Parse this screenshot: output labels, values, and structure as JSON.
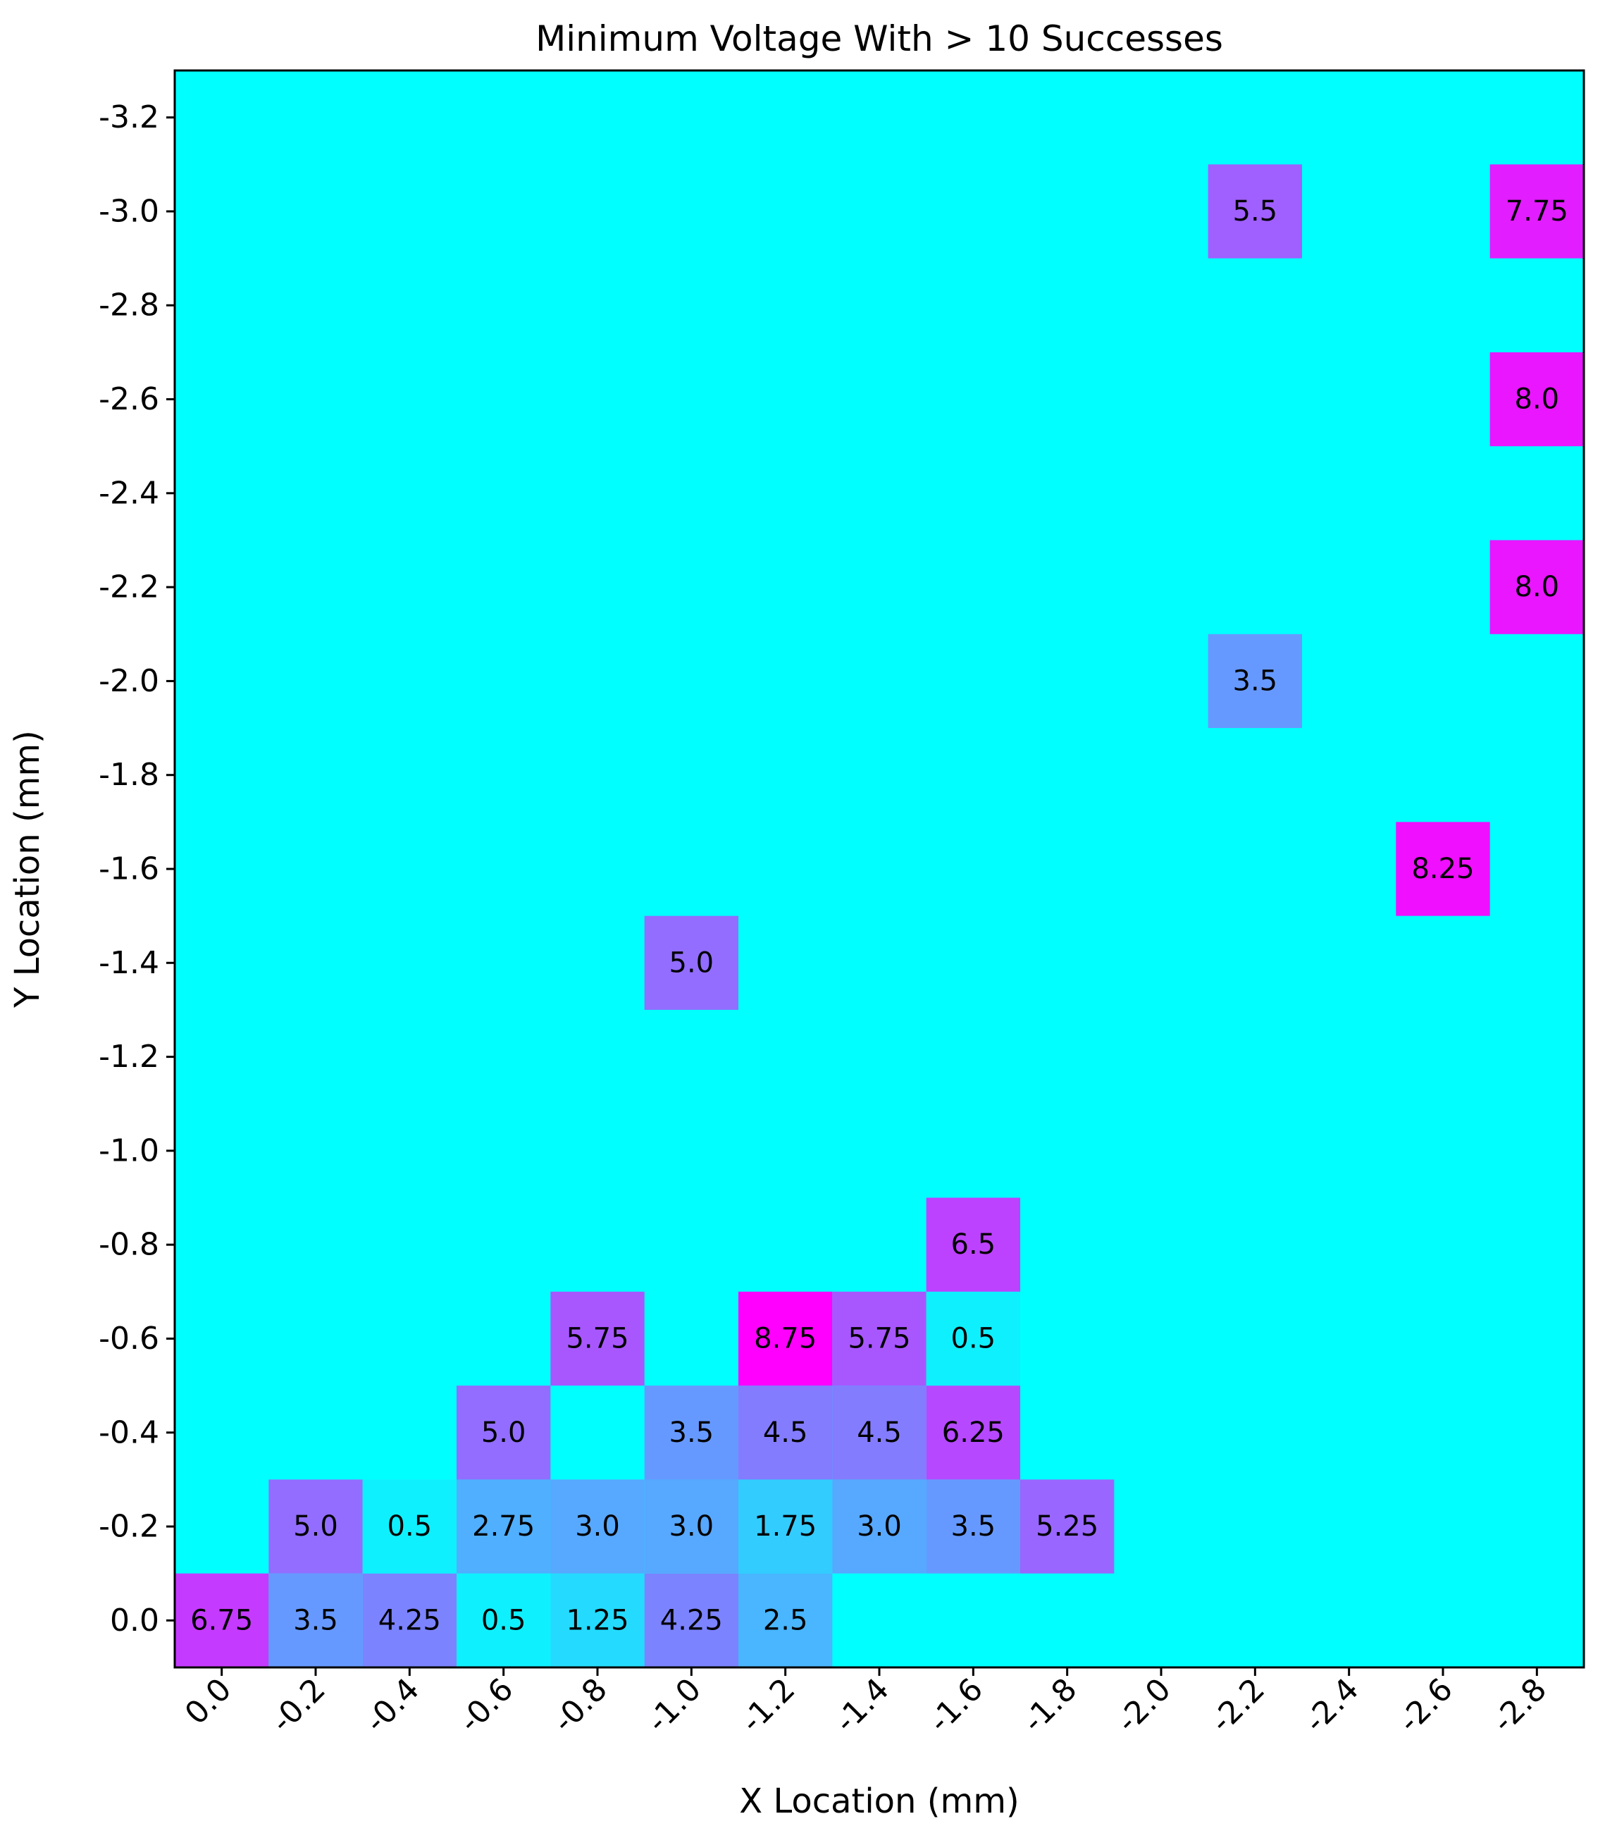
{
  "chart_data": {
    "type": "heatmap",
    "title": "Minimum Voltage With > 10 Successes",
    "xlabel": "X Location (mm)",
    "ylabel": "Y Location (mm)",
    "x_ticks": [
      "0.0",
      "-0.2",
      "-0.4",
      "-0.6",
      "-0.8",
      "-1.0",
      "-1.2",
      "-1.4",
      "-1.6",
      "-1.8",
      "-2.0",
      "-2.2",
      "-2.4",
      "-2.6",
      "-2.8"
    ],
    "y_ticks": [
      "-3.2",
      "-3.0",
      "-2.8",
      "-2.6",
      "-2.4",
      "-2.2",
      "-2.0",
      "-1.8",
      "-1.6",
      "-1.4",
      "-1.2",
      "-1.0",
      "-0.8",
      "-0.6",
      "-0.4",
      "-0.2",
      "0.0"
    ],
    "xlim": [
      0.1,
      -2.9
    ],
    "ylim": [
      0.1,
      -3.3
    ],
    "cell_size": 0.2,
    "colormap": "cool",
    "vmin": 0,
    "vmax": 8.75,
    "background_color": "#00ffff",
    "cells": [
      {
        "x": 0.0,
        "y": 0.0,
        "value": 6.75,
        "label": "6.75"
      },
      {
        "x": -0.2,
        "y": 0.0,
        "value": 3.5,
        "label": "3.5"
      },
      {
        "x": -0.4,
        "y": 0.0,
        "value": 4.25,
        "label": "4.25"
      },
      {
        "x": -0.6,
        "y": 0.0,
        "value": 0.5,
        "label": "0.5"
      },
      {
        "x": -0.8,
        "y": 0.0,
        "value": 1.25,
        "label": "1.25"
      },
      {
        "x": -1.0,
        "y": 0.0,
        "value": 4.25,
        "label": "4.25"
      },
      {
        "x": -1.2,
        "y": 0.0,
        "value": 2.5,
        "label": "2.5"
      },
      {
        "x": -0.2,
        "y": -0.2,
        "value": 5.0,
        "label": "5.0"
      },
      {
        "x": -0.4,
        "y": -0.2,
        "value": 0.5,
        "label": "0.5"
      },
      {
        "x": -0.6,
        "y": -0.2,
        "value": 2.75,
        "label": "2.75"
      },
      {
        "x": -0.8,
        "y": -0.2,
        "value": 3.0,
        "label": "3.0"
      },
      {
        "x": -1.0,
        "y": -0.2,
        "value": 3.0,
        "label": "3.0"
      },
      {
        "x": -1.2,
        "y": -0.2,
        "value": 1.75,
        "label": "1.75"
      },
      {
        "x": -1.4,
        "y": -0.2,
        "value": 3.0,
        "label": "3.0"
      },
      {
        "x": -1.6,
        "y": -0.2,
        "value": 3.5,
        "label": "3.5"
      },
      {
        "x": -1.8,
        "y": -0.2,
        "value": 5.25,
        "label": "5.25"
      },
      {
        "x": -0.6,
        "y": -0.4,
        "value": 5.0,
        "label": "5.0"
      },
      {
        "x": -1.0,
        "y": -0.4,
        "value": 3.5,
        "label": "3.5"
      },
      {
        "x": -1.2,
        "y": -0.4,
        "value": 4.5,
        "label": "4.5"
      },
      {
        "x": -1.4,
        "y": -0.4,
        "value": 4.5,
        "label": "4.5"
      },
      {
        "x": -1.6,
        "y": -0.4,
        "value": 6.25,
        "label": "6.25"
      },
      {
        "x": -0.8,
        "y": -0.6,
        "value": 5.75,
        "label": "5.75"
      },
      {
        "x": -1.2,
        "y": -0.6,
        "value": 8.75,
        "label": "8.75"
      },
      {
        "x": -1.4,
        "y": -0.6,
        "value": 5.75,
        "label": "5.75"
      },
      {
        "x": -1.6,
        "y": -0.6,
        "value": 0.5,
        "label": "0.5"
      },
      {
        "x": -1.6,
        "y": -0.8,
        "value": 6.5,
        "label": "6.5"
      },
      {
        "x": -1.0,
        "y": -1.4,
        "value": 5.0,
        "label": "5.0"
      },
      {
        "x": -2.6,
        "y": -1.6,
        "value": 8.25,
        "label": "8.25"
      },
      {
        "x": -2.2,
        "y": -2.0,
        "value": 3.5,
        "label": "3.5"
      },
      {
        "x": -2.8,
        "y": -2.2,
        "value": 8.0,
        "label": "8.0"
      },
      {
        "x": -2.8,
        "y": -2.6,
        "value": 8.0,
        "label": "8.0"
      },
      {
        "x": -2.2,
        "y": -3.0,
        "value": 5.5,
        "label": "5.5"
      },
      {
        "x": -2.8,
        "y": -3.0,
        "value": 7.75,
        "label": "7.75"
      }
    ]
  }
}
